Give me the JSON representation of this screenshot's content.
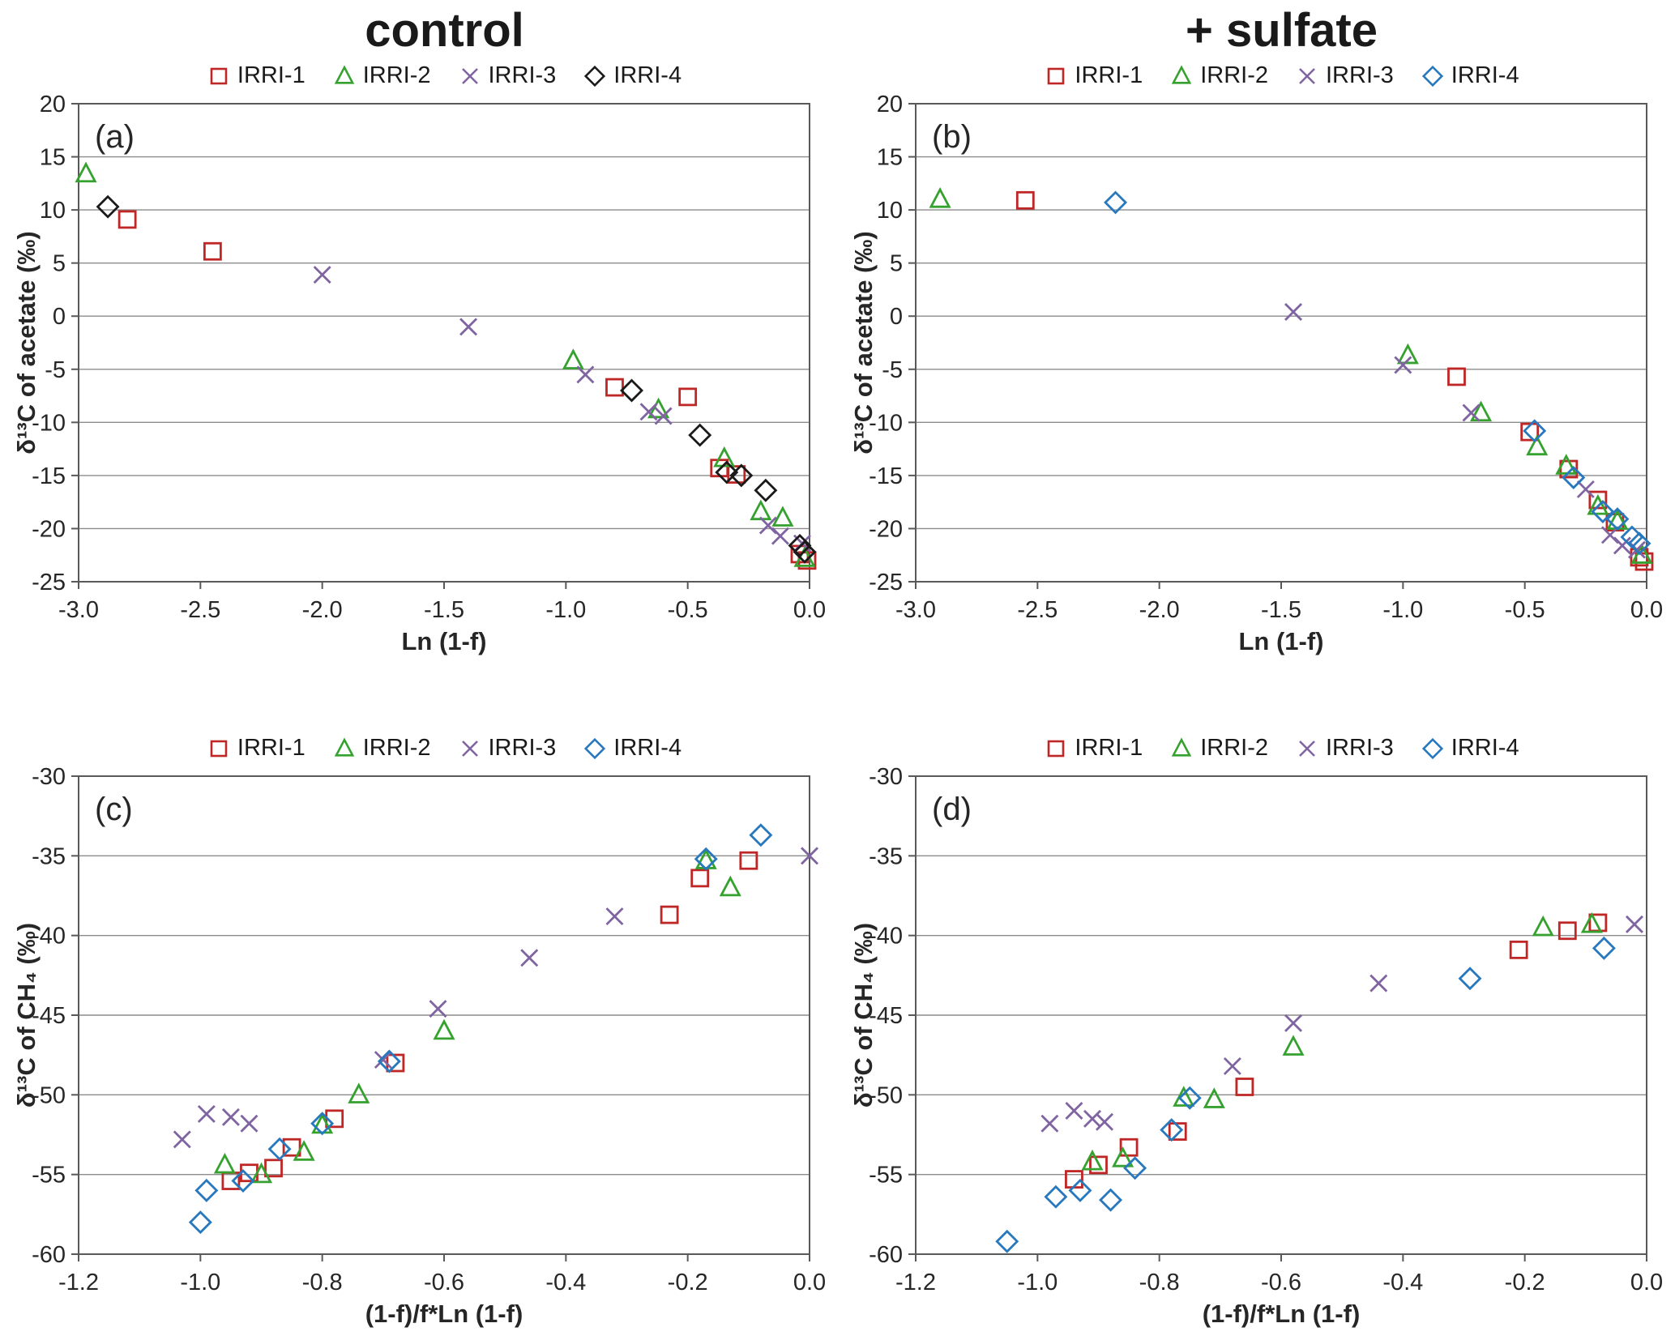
{
  "columns": [
    {
      "title": "control"
    },
    {
      "title": "+ sulfate"
    }
  ],
  "chart_data": [
    {
      "id": "a",
      "type": "scatter",
      "panel_label": "(a)",
      "column": "control",
      "xlabel": "Ln (1-f)",
      "ylabel": "δ¹³C of acetate (‰)",
      "xlim": [
        -3.0,
        0.0
      ],
      "ylim": [
        -25,
        20
      ],
      "xtick_vals": [
        -3.0,
        -2.5,
        -2.0,
        -1.5,
        -1.0,
        -0.5,
        0.0
      ],
      "xtick_labels": [
        "-3.0",
        "-2.5",
        "-2.0",
        "-1.5",
        "-1.0",
        "-0.5",
        "0.0"
      ],
      "ytick_vals": [
        20,
        15,
        10,
        5,
        0,
        -5,
        -10,
        -15,
        -20,
        -25
      ],
      "ytick_labels": [
        "20",
        "15",
        "10",
        "5",
        "0",
        "-5",
        "-10",
        "-15",
        "-20",
        "-25"
      ],
      "grid": "horizontal",
      "legend_position": "top",
      "series": [
        {
          "name": "IRRI-1",
          "marker": "square",
          "color": "#bf2626",
          "points": [
            [
              -2.8,
              9.1
            ],
            [
              -2.45,
              6.1
            ],
            [
              -0.8,
              -6.7
            ],
            [
              -0.5,
              -7.6
            ],
            [
              -0.37,
              -14.3
            ],
            [
              -0.3,
              -14.9
            ],
            [
              -0.04,
              -22.4
            ],
            [
              -0.01,
              -23.0
            ]
          ]
        },
        {
          "name": "IRRI-2",
          "marker": "triangle",
          "color": "#35a12f",
          "points": [
            [
              -2.97,
              13.4
            ],
            [
              -0.97,
              -4.2
            ],
            [
              -0.62,
              -8.8
            ],
            [
              -0.35,
              -13.4
            ],
            [
              -0.2,
              -18.4
            ],
            [
              -0.11,
              -19.0
            ],
            [
              -0.02,
              -22.8
            ]
          ]
        },
        {
          "name": "IRRI-3",
          "marker": "x",
          "color": "#8064a2",
          "points": [
            [
              -2.0,
              3.9
            ],
            [
              -1.4,
              -1.0
            ],
            [
              -0.92,
              -5.5
            ],
            [
              -0.66,
              -9.0
            ],
            [
              -0.6,
              -9.4
            ],
            [
              -0.17,
              -19.7
            ],
            [
              -0.12,
              -20.7
            ],
            [
              -0.03,
              -21.4
            ]
          ]
        },
        {
          "name": "IRRI-4",
          "marker": "diamond",
          "color": "#1a1a1a",
          "points": [
            [
              -2.88,
              10.3
            ],
            [
              -0.73,
              -7.0
            ],
            [
              -0.45,
              -11.2
            ],
            [
              -0.34,
              -14.7
            ],
            [
              -0.28,
              -15.0
            ],
            [
              -0.18,
              -16.4
            ],
            [
              -0.04,
              -21.6
            ],
            [
              -0.02,
              -22.2
            ]
          ]
        }
      ]
    },
    {
      "id": "b",
      "type": "scatter",
      "panel_label": "(b)",
      "column": "+ sulfate",
      "xlabel": "Ln (1-f)",
      "ylabel": "δ¹³C of acetate (‰)",
      "xlim": [
        -3.0,
        0.0
      ],
      "ylim": [
        -25,
        20
      ],
      "xtick_vals": [
        -3.0,
        -2.5,
        -2.0,
        -1.5,
        -1.0,
        -0.5,
        0.0
      ],
      "xtick_labels": [
        "-3.0",
        "-2.5",
        "-2.0",
        "-1.5",
        "-1.0",
        "-0.5",
        "0.0"
      ],
      "ytick_vals": [
        20,
        15,
        10,
        5,
        0,
        -5,
        -10,
        -15,
        -20,
        -25
      ],
      "ytick_labels": [
        "20",
        "15",
        "10",
        "5",
        "0",
        "-5",
        "-10",
        "-15",
        "-20",
        "-25"
      ],
      "grid": "horizontal",
      "legend_position": "top",
      "series": [
        {
          "name": "IRRI-1",
          "marker": "square",
          "color": "#bf2626",
          "points": [
            [
              -2.55,
              10.9
            ],
            [
              -0.78,
              -5.7
            ],
            [
              -0.48,
              -10.9
            ],
            [
              -0.32,
              -14.4
            ],
            [
              -0.2,
              -17.3
            ],
            [
              -0.13,
              -19.4
            ],
            [
              -0.03,
              -22.7
            ],
            [
              -0.01,
              -23.1
            ]
          ]
        },
        {
          "name": "IRRI-2",
          "marker": "triangle",
          "color": "#35a12f",
          "points": [
            [
              -2.9,
              11.0
            ],
            [
              -0.98,
              -3.7
            ],
            [
              -0.68,
              -9.1
            ],
            [
              -0.45,
              -12.3
            ],
            [
              -0.33,
              -14.1
            ],
            [
              -0.2,
              -17.9
            ],
            [
              -0.12,
              -19.3
            ],
            [
              -0.02,
              -22.5
            ]
          ]
        },
        {
          "name": "IRRI-3",
          "marker": "x",
          "color": "#8064a2",
          "points": [
            [
              -1.45,
              0.4
            ],
            [
              -1.0,
              -4.6
            ],
            [
              -0.72,
              -9.1
            ],
            [
              -0.25,
              -16.3
            ],
            [
              -0.15,
              -20.6
            ],
            [
              -0.1,
              -21.6
            ],
            [
              -0.04,
              -22.0
            ]
          ]
        },
        {
          "name": "IRRI-4",
          "marker": "diamond",
          "color": "#2878be",
          "points": [
            [
              -2.18,
              10.7
            ],
            [
              -0.46,
              -10.8
            ],
            [
              -0.3,
              -15.2
            ],
            [
              -0.18,
              -18.4
            ],
            [
              -0.12,
              -19.1
            ],
            [
              -0.06,
              -20.8
            ],
            [
              -0.03,
              -21.4
            ]
          ]
        }
      ]
    },
    {
      "id": "c",
      "type": "scatter",
      "panel_label": "(c)",
      "column": "control",
      "xlabel": "(1-f)/f*Ln (1-f)",
      "ylabel": "δ¹³C of CH₄ (‰)",
      "xlim": [
        -1.2,
        0.0
      ],
      "ylim": [
        -60,
        -30
      ],
      "xtick_vals": [
        -1.2,
        -1.0,
        -0.8,
        -0.6,
        -0.4,
        -0.2,
        0.0
      ],
      "xtick_labels": [
        "-1.2",
        "-1.0",
        "-0.8",
        "-0.6",
        "-0.4",
        "-0.2",
        "0.0"
      ],
      "ytick_vals": [
        -30,
        -35,
        -40,
        -45,
        -50,
        -55,
        -60
      ],
      "ytick_labels": [
        "-30",
        "-35",
        "-40",
        "-45",
        "-50",
        "-55",
        "-60"
      ],
      "grid": "horizontal",
      "legend_position": "top",
      "series": [
        {
          "name": "IRRI-1",
          "marker": "square",
          "color": "#bf2626",
          "points": [
            [
              -0.95,
              -55.4
            ],
            [
              -0.92,
              -54.9
            ],
            [
              -0.88,
              -54.6
            ],
            [
              -0.85,
              -53.3
            ],
            [
              -0.78,
              -51.5
            ],
            [
              -0.68,
              -48.0
            ],
            [
              -0.23,
              -38.7
            ],
            [
              -0.18,
              -36.4
            ],
            [
              -0.1,
              -35.3
            ]
          ]
        },
        {
          "name": "IRRI-2",
          "marker": "triangle",
          "color": "#35a12f",
          "points": [
            [
              -0.96,
              -54.4
            ],
            [
              -0.9,
              -55.0
            ],
            [
              -0.83,
              -53.6
            ],
            [
              -0.8,
              -51.9
            ],
            [
              -0.74,
              -50.0
            ],
            [
              -0.6,
              -46.0
            ],
            [
              -0.17,
              -35.3
            ],
            [
              -0.13,
              -37.0
            ]
          ]
        },
        {
          "name": "IRRI-3",
          "marker": "x",
          "color": "#8064a2",
          "points": [
            [
              -1.03,
              -52.8
            ],
            [
              -0.99,
              -51.2
            ],
            [
              -0.95,
              -51.4
            ],
            [
              -0.92,
              -51.8
            ],
            [
              -0.7,
              -47.8
            ],
            [
              -0.61,
              -44.6
            ],
            [
              -0.46,
              -41.4
            ],
            [
              -0.32,
              -38.8
            ],
            [
              0.0,
              -35.0
            ]
          ]
        },
        {
          "name": "IRRI-4",
          "marker": "diamond",
          "color": "#2878be",
          "points": [
            [
              -1.0,
              -58.0
            ],
            [
              -0.99,
              -56.0
            ],
            [
              -0.93,
              -55.4
            ],
            [
              -0.87,
              -53.4
            ],
            [
              -0.8,
              -51.8
            ],
            [
              -0.69,
              -47.9
            ],
            [
              -0.17,
              -35.2
            ],
            [
              -0.08,
              -33.7
            ]
          ]
        }
      ]
    },
    {
      "id": "d",
      "type": "scatter",
      "panel_label": "(d)",
      "column": "+ sulfate",
      "xlabel": "(1-f)/f*Ln (1-f)",
      "ylabel": "δ¹³C of CH₄ (‰)",
      "xlim": [
        -1.2,
        0.0
      ],
      "ylim": [
        -60,
        -30
      ],
      "xtick_vals": [
        -1.2,
        -1.0,
        -0.8,
        -0.6,
        -0.4,
        -0.2,
        0.0
      ],
      "xtick_labels": [
        "-1.2",
        "-1.0",
        "-0.8",
        "-0.6",
        "-0.4",
        "-0.2",
        "0.0"
      ],
      "ytick_vals": [
        -30,
        -35,
        -40,
        -45,
        -50,
        -55,
        -60
      ],
      "ytick_labels": [
        "-30",
        "-35",
        "-40",
        "-45",
        "-50",
        "-55",
        "-60"
      ],
      "grid": "horizontal",
      "legend_position": "top",
      "series": [
        {
          "name": "IRRI-1",
          "marker": "square",
          "color": "#bf2626",
          "points": [
            [
              -0.94,
              -55.3
            ],
            [
              -0.9,
              -54.4
            ],
            [
              -0.85,
              -53.3
            ],
            [
              -0.77,
              -52.3
            ],
            [
              -0.66,
              -49.5
            ],
            [
              -0.21,
              -40.9
            ],
            [
              -0.13,
              -39.7
            ],
            [
              -0.08,
              -39.2
            ]
          ]
        },
        {
          "name": "IRRI-2",
          "marker": "triangle",
          "color": "#35a12f",
          "points": [
            [
              -0.91,
              -54.2
            ],
            [
              -0.86,
              -54.0
            ],
            [
              -0.76,
              -50.2
            ],
            [
              -0.71,
              -50.3
            ],
            [
              -0.58,
              -47.0
            ],
            [
              -0.17,
              -39.5
            ],
            [
              -0.09,
              -39.3
            ]
          ]
        },
        {
          "name": "IRRI-3",
          "marker": "x",
          "color": "#8064a2",
          "points": [
            [
              -0.98,
              -51.8
            ],
            [
              -0.94,
              -51.0
            ],
            [
              -0.91,
              -51.5
            ],
            [
              -0.89,
              -51.7
            ],
            [
              -0.68,
              -48.2
            ],
            [
              -0.58,
              -45.5
            ],
            [
              -0.44,
              -43.0
            ],
            [
              -0.02,
              -39.3
            ]
          ]
        },
        {
          "name": "IRRI-4",
          "marker": "diamond",
          "color": "#2878be",
          "points": [
            [
              -1.05,
              -59.2
            ],
            [
              -0.97,
              -56.4
            ],
            [
              -0.93,
              -56.0
            ],
            [
              -0.88,
              -56.6
            ],
            [
              -0.84,
              -54.6
            ],
            [
              -0.78,
              -52.2
            ],
            [
              -0.75,
              -50.2
            ],
            [
              -0.29,
              -42.7
            ],
            [
              -0.07,
              -40.8
            ]
          ]
        }
      ]
    }
  ],
  "style": {
    "gridline_color": "#8c8c8c",
    "axis_color": "#595959",
    "text_color": "#262626"
  }
}
